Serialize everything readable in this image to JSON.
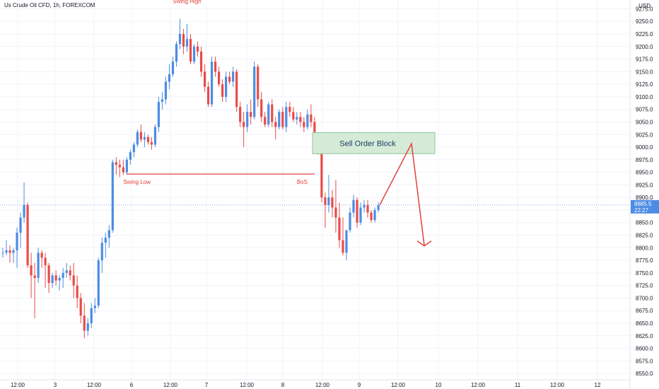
{
  "header": {
    "symbol_label": "Us Crude Oil CFD, 1h, FOREXCOM",
    "currency_label": "USD"
  },
  "chart_data": {
    "type": "candlestick",
    "title": "Us Crude Oil CFD, 1h, FOREXCOM",
    "ylabel": "USD",
    "ylim": [
      8537.5,
      9292.5
    ],
    "y_ticks": [
      8550,
      8575,
      8600,
      8625,
      8650,
      8675,
      8700,
      8725,
      8750,
      8775,
      8800,
      8825,
      8850,
      8875,
      8900,
      8925,
      8950,
      8975,
      9000,
      9025,
      9050,
      9075,
      9100,
      9125,
      9150,
      9175,
      9200,
      9225,
      9250,
      9275
    ],
    "y_tick_labels": [
      "8550.0",
      "8575.0",
      "8600.0",
      "8625.0",
      "8650.0",
      "8675.0",
      "8700.0",
      "8725.0",
      "8750.0",
      "8775.0",
      "8800.0",
      "8825.0",
      "8850.0",
      "8875.0",
      "8900.0",
      "8925.0",
      "8950.0",
      "8975.0",
      "9000.0",
      "9025.0",
      "9050.0",
      "9075.0",
      "9100.0",
      "9125.0",
      "9150.0",
      "9175.0",
      "9200.0",
      "9225.0",
      "9250.0",
      "9275.0"
    ],
    "x_ticks": [
      "12:00",
      "3",
      "12:00",
      "6",
      "12:00",
      "7",
      "12:00",
      "8",
      "12:00",
      "9",
      "12:00",
      "10",
      "12:00",
      "11",
      "12:00",
      "12"
    ],
    "current_price_label": "8885.5",
    "countdown_label": "22:27",
    "colors": {
      "up": "#4c8ce4",
      "down": "#e94b47",
      "annotation": "#e3403a",
      "order_block_fill": "#d5ebd8",
      "order_block_border": "#8fc79a",
      "grid": "#f0f3fa",
      "axis_text": "#131722",
      "price_label_bg": "#4c8ce4"
    },
    "grid": true,
    "candles": [
      [
        8790,
        8800,
        8780,
        8790
      ],
      [
        8790,
        8815,
        8785,
        8795
      ],
      [
        8795,
        8805,
        8770,
        8790
      ],
      [
        8790,
        8800,
        8770,
        8795
      ],
      [
        8795,
        8840,
        8760,
        8830
      ],
      [
        8830,
        8870,
        8800,
        8860
      ],
      [
        8860,
        8930,
        8850,
        8885
      ],
      [
        8885,
        8890,
        8760,
        8765
      ],
      [
        8765,
        8790,
        8700,
        8745
      ],
      [
        8745,
        8770,
        8660,
        8740
      ],
      [
        8740,
        8800,
        8730,
        8790
      ],
      [
        8790,
        8795,
        8760,
        8780
      ],
      [
        8780,
        8790,
        8720,
        8765
      ],
      [
        8765,
        8770,
        8710,
        8730
      ],
      [
        8730,
        8750,
        8720,
        8745
      ],
      [
        8745,
        8755,
        8725,
        8735
      ],
      [
        8735,
        8745,
        8715,
        8740
      ],
      [
        8740,
        8760,
        8720,
        8750
      ],
      [
        8750,
        8770,
        8740,
        8755
      ],
      [
        8755,
        8765,
        8735,
        8745
      ],
      [
        8745,
        8770,
        8700,
        8725
      ],
      [
        8725,
        8745,
        8680,
        8700
      ],
      [
        8700,
        8710,
        8650,
        8665
      ],
      [
        8665,
        8690,
        8620,
        8635
      ],
      [
        8635,
        8660,
        8625,
        8650
      ],
      [
        8650,
        8690,
        8640,
        8680
      ],
      [
        8680,
        8700,
        8670,
        8685
      ],
      [
        8685,
        8780,
        8680,
        8775
      ],
      [
        8775,
        8820,
        8750,
        8810
      ],
      [
        8810,
        8830,
        8780,
        8820
      ],
      [
        8820,
        8845,
        8800,
        8835
      ],
      [
        8835,
        8975,
        8830,
        8970
      ],
      [
        8970,
        8980,
        8945,
        8965
      ],
      [
        8965,
        8975,
        8940,
        8960
      ],
      [
        8960,
        8975,
        8945,
        8950
      ],
      [
        8950,
        8980,
        8945,
        8975
      ],
      [
        8975,
        8995,
        8965,
        8990
      ],
      [
        8990,
        9010,
        8980,
        9005
      ],
      [
        9005,
        9035,
        9000,
        9030
      ],
      [
        9030,
        9045,
        9010,
        9015
      ],
      [
        9015,
        9030,
        9000,
        9020
      ],
      [
        9020,
        9025,
        9005,
        9010
      ],
      [
        9010,
        9020,
        8995,
        9005
      ],
      [
        9005,
        9045,
        9000,
        9040
      ],
      [
        9040,
        9100,
        9030,
        9090
      ],
      [
        9090,
        9110,
        9075,
        9095
      ],
      [
        9095,
        9140,
        9085,
        9130
      ],
      [
        9130,
        9165,
        9115,
        9145
      ],
      [
        9145,
        9180,
        9140,
        9170
      ],
      [
        9170,
        9210,
        9160,
        9205
      ],
      [
        9205,
        9255,
        9195,
        9225
      ],
      [
        9225,
        9235,
        9185,
        9200
      ],
      [
        9200,
        9245,
        9190,
        9215
      ],
      [
        9215,
        9225,
        9165,
        9170
      ],
      [
        9170,
        9205,
        9165,
        9200
      ],
      [
        9200,
        9210,
        9180,
        9190
      ],
      [
        9190,
        9200,
        9140,
        9150
      ],
      [
        9150,
        9165,
        9110,
        9120
      ],
      [
        9120,
        9130,
        9080,
        9085
      ],
      [
        9085,
        9180,
        9080,
        9170
      ],
      [
        9170,
        9180,
        9140,
        9150
      ],
      [
        9150,
        9160,
        9120,
        9125
      ],
      [
        9125,
        9135,
        9090,
        9100
      ],
      [
        9100,
        9150,
        9090,
        9140
      ],
      [
        9140,
        9150,
        9125,
        9130
      ],
      [
        9130,
        9160,
        9120,
        9150
      ],
      [
        9150,
        9155,
        9070,
        9080
      ],
      [
        9080,
        9090,
        9040,
        9050
      ],
      [
        9050,
        9070,
        9000,
        9040
      ],
      [
        9040,
        9085,
        9030,
        9070
      ],
      [
        9070,
        9095,
        9045,
        9060
      ],
      [
        9060,
        9170,
        9055,
        9160
      ],
      [
        9160,
        9165,
        9080,
        9095
      ],
      [
        9095,
        9110,
        9050,
        9060
      ],
      [
        9060,
        9070,
        9040,
        9045
      ],
      [
        9045,
        9090,
        9040,
        9085
      ],
      [
        9085,
        9095,
        9040,
        9050
      ],
      [
        9050,
        9060,
        9015,
        9040
      ],
      [
        9040,
        9075,
        9035,
        9070
      ],
      [
        9070,
        9080,
        9035,
        9040
      ],
      [
        9040,
        9090,
        9030,
        9080
      ],
      [
        9080,
        9090,
        9060,
        9070
      ],
      [
        9070,
        9080,
        9050,
        9055
      ],
      [
        9055,
        9070,
        9045,
        9060
      ],
      [
        9060,
        9070,
        9040,
        9050
      ],
      [
        9050,
        9060,
        9030,
        9040
      ],
      [
        9040,
        9075,
        9035,
        9065
      ],
      [
        9065,
        9085,
        9040,
        9050
      ],
      [
        9050,
        9060,
        9000,
        9005
      ],
      [
        9005,
        9010,
        8985,
        8995
      ],
      [
        8995,
        9000,
        8890,
        8900
      ],
      [
        8900,
        8910,
        8840,
        8885
      ],
      [
        8885,
        8945,
        8870,
        8900
      ],
      [
        8900,
        8915,
        8860,
        8880
      ],
      [
        8880,
        8935,
        8830,
        8860
      ],
      [
        8860,
        8890,
        8800,
        8815
      ],
      [
        8815,
        8860,
        8785,
        8790
      ],
      [
        8790,
        8830,
        8775,
        8835
      ],
      [
        8835,
        8880,
        8830,
        8870
      ],
      [
        8870,
        8905,
        8860,
        8895
      ],
      [
        8895,
        8900,
        8840,
        8850
      ],
      [
        8850,
        8890,
        8845,
        8880
      ],
      [
        8880,
        8895,
        8870,
        8885
      ],
      [
        8885,
        8895,
        8860,
        8870
      ],
      [
        8870,
        8875,
        8850,
        8855
      ],
      [
        8855,
        8880,
        8850,
        8875
      ],
      [
        8875,
        8890,
        8870,
        8885
      ]
    ],
    "annotations": {
      "swing_high_label": "Swing High",
      "swing_low_label": "Swing Low",
      "bos_label": "BoS",
      "order_block_label": "Sell Order Block",
      "swing_high_value": 9255,
      "swing_low_value": 8945,
      "order_block_range": [
        8987,
        9029
      ],
      "projection_prices": [
        8885,
        9007,
        8805
      ]
    }
  }
}
